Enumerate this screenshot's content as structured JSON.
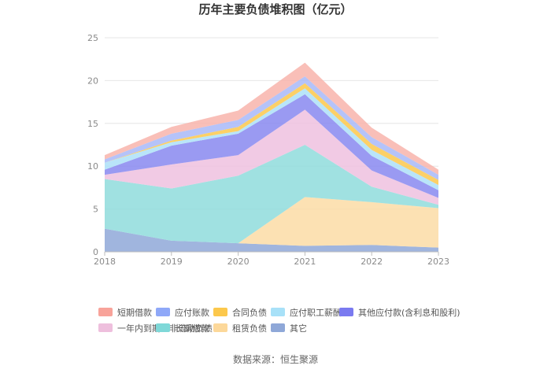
{
  "chart_data": {
    "type": "area",
    "stacked": true,
    "title": "历年主要负债堆积图（亿元）",
    "xlabel": "",
    "ylabel": "",
    "categories": [
      "2018",
      "2019",
      "2020",
      "2021",
      "2022",
      "2023"
    ],
    "ylim": [
      0,
      25
    ],
    "yticks": [
      "0",
      "5",
      "10",
      "15",
      "20",
      "25"
    ],
    "grid": true,
    "legend_position": "bottom",
    "series": [
      {
        "name": "其它",
        "color": "#8fa8d8",
        "values": [
          2.7,
          1.3,
          1.0,
          0.7,
          0.8,
          0.5
        ]
      },
      {
        "name": "租赁负债",
        "color": "#fcdca6",
        "values": [
          0,
          0,
          0,
          5.7,
          5.0,
          4.6
        ]
      },
      {
        "name": "长期借款",
        "color": "#8fdcdc",
        "values": [
          5.8,
          6.1,
          7.9,
          6.1,
          1.8,
          0.4
        ]
      },
      {
        "name": "一年内到期的非流动负债",
        "color": "#eec1df",
        "values": [
          0.5,
          2.8,
          2.4,
          4.1,
          1.9,
          0.8
        ]
      },
      {
        "name": "其他应付款(含利息和股利)",
        "color": "#8888f0",
        "values": [
          0.6,
          2.2,
          2.5,
          1.8,
          1.7,
          0.9
        ]
      },
      {
        "name": "应付职工薪酬",
        "color": "#ade1f8",
        "values": [
          0.8,
          0.4,
          0.3,
          0.7,
          0.7,
          0.6
        ]
      },
      {
        "name": "合同负债",
        "color": "#fcc84c",
        "values": [
          0,
          0.2,
          0.5,
          0.6,
          0.7,
          0.6
        ]
      },
      {
        "name": "应付账款",
        "color": "#a8b8f8",
        "values": [
          0.4,
          0.8,
          0.8,
          0.8,
          0.8,
          0.6
        ]
      },
      {
        "name": "短期借款",
        "color": "#f8b4ac",
        "values": [
          0.5,
          0.8,
          1.1,
          1.6,
          1.1,
          0.6
        ]
      }
    ],
    "legend": [
      {
        "name": "短期借款",
        "color": "#f8a39a"
      },
      {
        "name": "应付账款",
        "color": "#8fa8f8"
      },
      {
        "name": "合同负债",
        "color": "#fcc84c"
      },
      {
        "name": "应付职工薪酬",
        "color": "#a8e1f8"
      },
      {
        "name": "其他应付款(含利息和股利)",
        "color": "#7a7af0"
      },
      {
        "name": "一年内到期的非流动负债",
        "color": "#eebfdd"
      },
      {
        "name": "长期借款",
        "color": "#7fd8d8"
      },
      {
        "name": "租赁负债",
        "color": "#fcd89a"
      },
      {
        "name": "其它",
        "color": "#8fa8d8"
      }
    ]
  },
  "source": "数据来源：恒生聚源"
}
